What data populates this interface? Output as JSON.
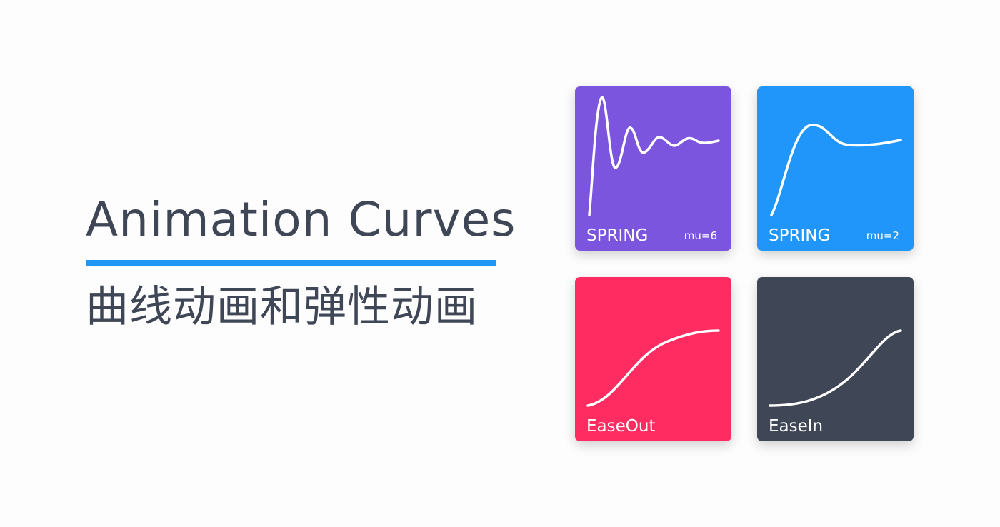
{
  "title": "Animation  Curves",
  "subtitle": "曲线动画和弹性动画",
  "accent_color": "#2196f3",
  "cards": [
    {
      "label": "SPRING",
      "param": "mu=6",
      "color": "#7b55dd",
      "curve": "spring-high-oscillation"
    },
    {
      "label": "SPRING",
      "param": "mu=2",
      "color": "#2196fa",
      "curve": "spring-low-oscillation"
    },
    {
      "label": "EaseOut",
      "param": "",
      "color": "#fe2c60",
      "curve": "ease-out"
    },
    {
      "label": "EaseIn",
      "param": "",
      "color": "#3f4656",
      "curve": "ease-in"
    }
  ]
}
